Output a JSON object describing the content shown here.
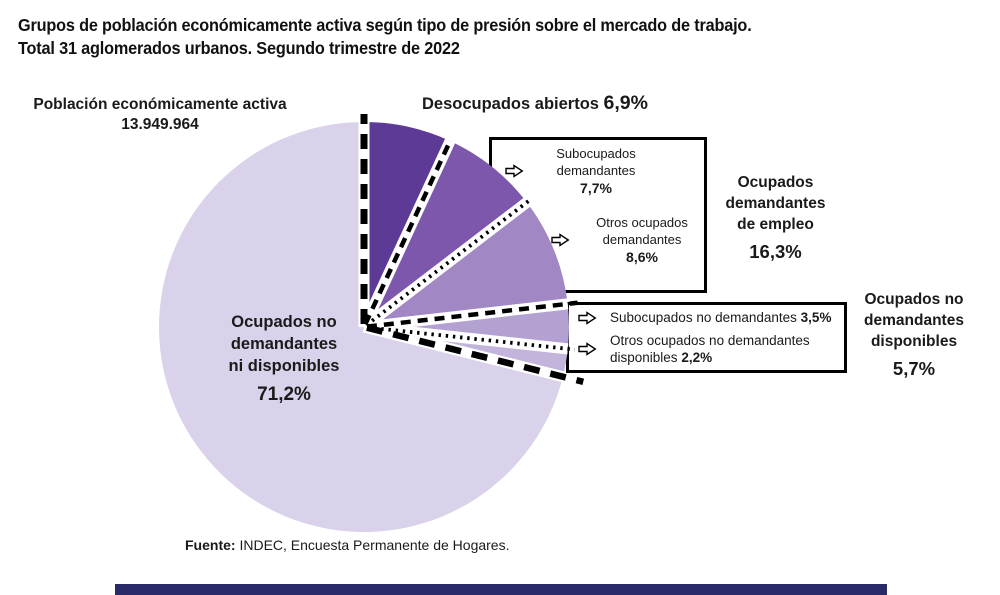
{
  "title": {
    "line1": "Grupos de población económicamente activa según tipo de presión sobre el mercado de trabajo.",
    "line2": "Total 31 aglomerados urbanos. Segundo trimestre de 2022"
  },
  "pea": {
    "label": "Población económicamente activa",
    "value": "13.949.964"
  },
  "chart_data": {
    "type": "pie",
    "title": "Grupos de población económicamente activa según tipo de presión sobre el mercado de trabajo. Total 31 aglomerados urbanos. Segundo trimestre de 2022",
    "total_label": "Población económicamente activa",
    "total_value": "13.949.964",
    "units": "%",
    "start_angle_deg": 0,
    "direction": "clockwise",
    "slices": [
      {
        "label": "Desocupados abiertos",
        "label_lines": [
          "Desocupados abiertos"
        ],
        "value": 6.9,
        "pct_label": "6,9%",
        "color": "#5c3a96"
      },
      {
        "label": "Subocupados demandantes",
        "label_lines": [
          "Subocupados",
          "demandantes"
        ],
        "value": 7.7,
        "pct_label": "7,7%",
        "color": "#7d57ab"
      },
      {
        "label": "Otros ocupados demandantes",
        "label_lines": [
          "Otros ocupados",
          "demandantes"
        ],
        "value": 8.6,
        "pct_label": "8,6%",
        "color": "#a188c5"
      },
      {
        "label": "Subocupados no demandantes",
        "label_lines": [
          "Subocupados no demandantes"
        ],
        "value": 3.5,
        "pct_label": "3,5%",
        "color": "#b3a1d1"
      },
      {
        "label": "Otros ocupados no demandantes disponibles",
        "label_lines": [
          "Otros ocupados no demandantes",
          "disponibles"
        ],
        "value": 2.2,
        "pct_label": "2,2%",
        "color": "#c3b4db"
      },
      {
        "label": "Ocupados no demandantes ni disponibles",
        "label_lines": [
          "Ocupados no",
          "demandantes",
          "ni disponibles"
        ],
        "value": 71.2,
        "pct_label": "71,2%",
        "color": "#d9d2ea"
      }
    ],
    "groups": [
      {
        "label": "Ocupados demandantes de empleo",
        "label_lines": [
          "Ocupados",
          "demandantes",
          "de empleo"
        ],
        "pct_label": "16,3%"
      },
      {
        "label": "Ocupados no demandantes disponibles",
        "label_lines": [
          "Ocupados no",
          "demandantes",
          "disponibles"
        ],
        "pct_label": "5,7%"
      }
    ]
  },
  "source": {
    "label": "Fuente:",
    "text": " INDEC, Encuesta Permanente de Hogares."
  },
  "colors": {
    "bottom_bar": "#2a2a68",
    "separator_line": "#000000",
    "separator_gap": "#ffffff"
  }
}
